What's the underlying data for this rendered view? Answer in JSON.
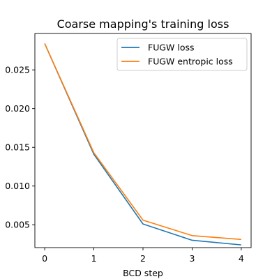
{
  "chart_data": {
    "type": "line",
    "title": "Coarse mapping's training loss",
    "xlabel": "BCD step",
    "ylabel": "",
    "x": [
      0,
      1,
      2,
      3,
      4
    ],
    "xlim": [
      -0.2,
      4.2
    ],
    "ylim": [
      0.00205,
      0.0297
    ],
    "xticks": [
      0,
      1,
      2,
      3,
      4
    ],
    "xtick_labels": [
      "0",
      "1",
      "2",
      "3",
      "4"
    ],
    "yticks": [
      0.005,
      0.01,
      0.015,
      0.02,
      0.025
    ],
    "ytick_labels": [
      "0.005",
      "0.010",
      "0.015",
      "0.020",
      "0.025"
    ],
    "legend_position": "top-right",
    "grid": false,
    "series": [
      {
        "name": "FUGW loss",
        "color": "#1f77b4",
        "values": [
          0.0284,
          0.0141,
          0.0051,
          0.003,
          0.0024
        ]
      },
      {
        "name": "FUGW entropic loss",
        "color": "#ff7f0e",
        "values": [
          0.0284,
          0.0143,
          0.0056,
          0.0036,
          0.0031
        ]
      }
    ]
  }
}
